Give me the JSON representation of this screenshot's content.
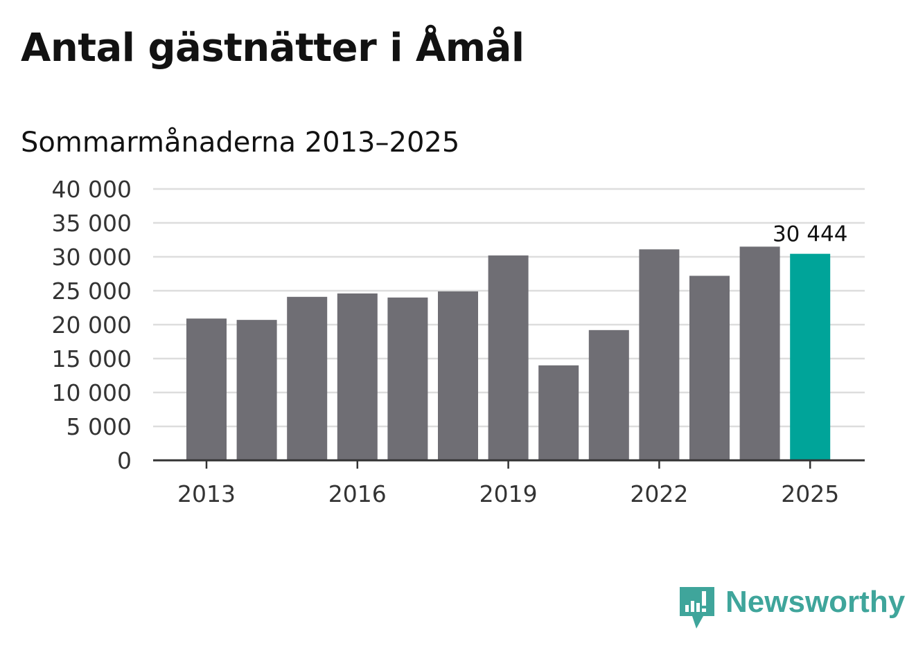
{
  "title": "Antal gästnätter i Åmål",
  "subtitle": "Sommarmånaderna 2013–2025",
  "brand": {
    "name": "Newsworthy",
    "icon": "newsworthy-bars-logo-icon",
    "color": "#3fa59b"
  },
  "colors": {
    "bar": "#6f6e74",
    "highlight": "#00a499",
    "grid": "#dddddd",
    "axis": "#333333"
  },
  "chart_data": {
    "type": "bar",
    "categories": [
      "2013",
      "2014",
      "2015",
      "2016",
      "2017",
      "2018",
      "2019",
      "2020",
      "2021",
      "2022",
      "2023",
      "2024",
      "2025"
    ],
    "values": [
      20900,
      20700,
      24100,
      24600,
      24000,
      24900,
      30200,
      14000,
      19200,
      31100,
      27200,
      31500,
      30444
    ],
    "highlight_index": 12,
    "annotations": [
      {
        "category": "2025",
        "label": "30 444"
      }
    ],
    "ylim": [
      0,
      40000
    ],
    "yticks": [
      {
        "value": 0,
        "label": "0"
      },
      {
        "value": 5000,
        "label": "5 000"
      },
      {
        "value": 10000,
        "label": "10 000"
      },
      {
        "value": 15000,
        "label": "15 000"
      },
      {
        "value": 20000,
        "label": "20 000"
      },
      {
        "value": 25000,
        "label": "25 000"
      },
      {
        "value": 30000,
        "label": "30 000"
      },
      {
        "value": 35000,
        "label": "35 000"
      },
      {
        "value": 40000,
        "label": "40 000"
      }
    ],
    "xtick_labels": [
      "2013",
      "2016",
      "2019",
      "2022",
      "2025"
    ],
    "grid": true,
    "legend": "none"
  }
}
